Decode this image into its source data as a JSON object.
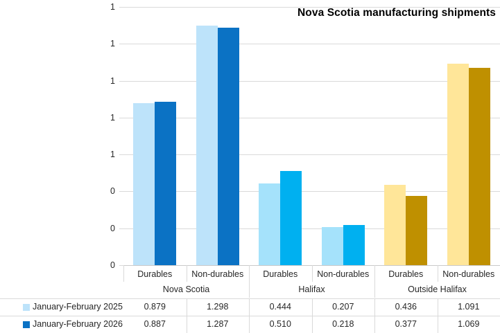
{
  "chart_data": {
    "type": "bar",
    "title": "Nova Scotia manufacturing shipments",
    "categories": [
      "Durables",
      "Non-durables",
      "Durables",
      "Non-durables",
      "Durables",
      "Non-durables"
    ],
    "groups": [
      {
        "label": "Nova Scotia",
        "series_colors": [
          "#BDE3FA",
          "#0B72C4"
        ]
      },
      {
        "label": "Halifax",
        "series_colors": [
          "#A5E2FB",
          "#00B0F0"
        ]
      },
      {
        "label": "Outside Halifax",
        "series_colors": [
          "#FFE699",
          "#BF9000"
        ]
      }
    ],
    "series": [
      {
        "name": "January-February 2025",
        "swatch": "#BDE3FA",
        "values": [
          0.879,
          1.298,
          0.444,
          0.207,
          0.436,
          1.091
        ]
      },
      {
        "name": "January-February 2026",
        "swatch": "#0B72C4",
        "values": [
          0.887,
          1.287,
          0.51,
          0.218,
          0.377,
          1.069
        ]
      }
    ],
    "y_axis": {
      "min": 0,
      "max": 1.4,
      "step": 0.2,
      "tick_labels_bottom_to_top": [
        "0",
        "0",
        "0",
        "1",
        "1",
        "1",
        "1",
        "1"
      ]
    },
    "grid": true,
    "legend_position": "bottom-table",
    "value_format_decimals": 3,
    "colors": {
      "gridline": "#D9D9D9",
      "axis_line": "#C9C9C9",
      "text": "#262626",
      "title": "#000000"
    }
  }
}
